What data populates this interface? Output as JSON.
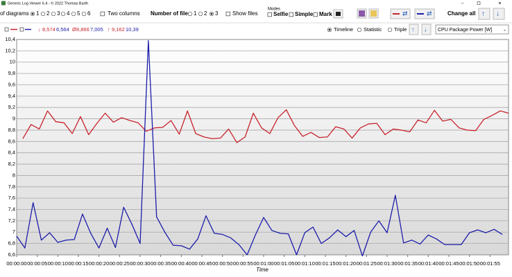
{
  "window": {
    "title": "Generic Log Viewer 6.4 - © 2022 Thomas Barth"
  },
  "toolbar": {
    "diagrams_label": "of diagrams",
    "diagram_options": [
      "1",
      "2",
      "3",
      "4",
      "5",
      "6"
    ],
    "two_columns": "Two columns",
    "files_label": "Number of files",
    "file_options": [
      "1",
      "2",
      "3"
    ],
    "show_files": "Show files",
    "modes_label": "Modes",
    "modes": [
      "Selfie",
      "Simple",
      "Mark"
    ],
    "change_all": "Change all"
  },
  "stats": [
    {
      "symbol": "↓",
      "values": [
        "8,574",
        "6,564"
      ]
    },
    {
      "symbol": "Ø",
      "values": [
        "8,866",
        "7,005"
      ]
    },
    {
      "symbol": "↑",
      "values": [
        "9,162",
        "10,39"
      ]
    }
  ],
  "view_options": [
    "Timeline",
    "Statistic",
    "Triple"
  ],
  "channel": "CPU Package Power [W]",
  "chart_data": {
    "type": "line",
    "x_label": "Time",
    "grid": true,
    "xlim": [
      0,
      119.5
    ],
    "ylim": [
      6.6,
      10.4
    ],
    "xticks": [
      {
        "value": 0,
        "label": "00:00:00"
      },
      {
        "value": 5,
        "label": "00:00:05"
      },
      {
        "value": 10,
        "label": "00:00:10"
      },
      {
        "value": 15,
        "label": "00:00:15"
      },
      {
        "value": 20,
        "label": "00:00:20"
      },
      {
        "value": 25,
        "label": "00:00:25"
      },
      {
        "value": 30,
        "label": "00:00:30"
      },
      {
        "value": 35,
        "label": "00:00:35"
      },
      {
        "value": 40,
        "label": "00:00:40"
      },
      {
        "value": 45,
        "label": "00:00:45"
      },
      {
        "value": 50,
        "label": "00:00:50"
      },
      {
        "value": 55,
        "label": "00:00:55"
      },
      {
        "value": 60,
        "label": "00:01:00"
      },
      {
        "value": 65,
        "label": "00:01:05"
      },
      {
        "value": 70,
        "label": "00:01:10"
      },
      {
        "value": 75,
        "label": "00:01:15"
      },
      {
        "value": 80,
        "label": "00:01:20"
      },
      {
        "value": 85,
        "label": "00:01:25"
      },
      {
        "value": 90,
        "label": "00:01:30"
      },
      {
        "value": 95,
        "label": "00:01:35"
      },
      {
        "value": 100,
        "label": "00:01:40"
      },
      {
        "value": 105,
        "label": "00:01:45"
      },
      {
        "value": 110,
        "label": "00:01:50"
      },
      {
        "value": 115,
        "label": "00:01:55"
      }
    ],
    "yticks": [
      {
        "value": 6.6,
        "label": "6,6"
      },
      {
        "value": 6.8,
        "label": "6,8"
      },
      7,
      {
        "value": 7.2,
        "label": "7,2"
      },
      {
        "value": 7.4,
        "label": "7,4"
      },
      {
        "value": 7.6,
        "label": "7,6"
      },
      {
        "value": 7.8,
        "label": "7,8"
      },
      8,
      {
        "value": 8.2,
        "label": "8,2"
      },
      {
        "value": 8.4,
        "label": "8,4"
      },
      {
        "value": 8.6,
        "label": "8,6"
      },
      {
        "value": 8.8,
        "label": "8,8"
      },
      9,
      {
        "value": 9.2,
        "label": "9,2"
      },
      {
        "value": 9.4,
        "label": "9,4"
      },
      {
        "value": 9.6,
        "label": "9,6"
      },
      {
        "value": 9.8,
        "label": "9,8"
      },
      10,
      {
        "value": 10.2,
        "label": "10,2"
      },
      {
        "value": 10.4,
        "label": "10,4"
      }
    ],
    "series": [
      {
        "color": "#c8232c",
        "x": [
          1.5,
          3.5,
          5.5,
          7.5,
          9.5,
          11.5,
          13.5,
          15.5,
          17.5,
          19.5,
          21.5,
          23.5,
          25.5,
          27.5,
          29.5,
          31.5,
          33.5,
          35.5,
          37.5,
          39.5,
          41.5,
          43.5,
          45.5,
          47.5,
          49.5,
          51.5,
          53.5,
          55.5,
          57.5,
          59.5,
          61.5,
          63.5,
          65.5,
          67.5,
          69.5,
          71.5,
          73.5,
          75.5,
          77.5,
          79.5,
          81.5,
          83.5,
          85.5,
          87.5,
          89.5,
          91.5,
          93.5,
          95.5,
          97.5,
          99.5,
          101.5,
          103.5,
          105.5,
          107.5,
          109.5,
          111.5,
          113.5,
          115.5,
          117.5,
          119.5
        ],
        "values": [
          8.65,
          8.9,
          8.82,
          9.14,
          8.95,
          8.93,
          8.74,
          9.04,
          8.72,
          8.92,
          9.1,
          8.94,
          9.02,
          8.97,
          8.93,
          8.78,
          8.84,
          8.85,
          8.97,
          8.73,
          9.14,
          8.74,
          8.68,
          8.65,
          8.66,
          8.82,
          8.58,
          8.68,
          9.1,
          8.84,
          8.74,
          9.02,
          9.16,
          8.88,
          8.69,
          8.76,
          8.67,
          8.68,
          8.86,
          8.82,
          8.66,
          8.84,
          8.91,
          8.92,
          8.72,
          8.82,
          8.8,
          8.77,
          8.98,
          8.93,
          9.15,
          8.96,
          8.99,
          8.84,
          8.8,
          8.79,
          8.99,
          9.06,
          9.14,
          9.1
        ]
      },
      {
        "color": "#1c1caa",
        "x": [
          0,
          2,
          4,
          6,
          8,
          10,
          12,
          14,
          16,
          18,
          20,
          22,
          24,
          26,
          28,
          30,
          32,
          34,
          36,
          38,
          40,
          42,
          44,
          46,
          48,
          50,
          52,
          54,
          56,
          58,
          60,
          62,
          64,
          66,
          68,
          70,
          72,
          74,
          76,
          78,
          80,
          82,
          84,
          86,
          88,
          90,
          92,
          94,
          96,
          98,
          100,
          102,
          104,
          106,
          108,
          110,
          112,
          114,
          116,
          118
        ],
        "values": [
          6.93,
          6.72,
          7.52,
          6.86,
          6.99,
          6.82,
          6.86,
          6.87,
          7.32,
          6.98,
          6.72,
          7.07,
          6.73,
          7.44,
          7.14,
          6.8,
          10.38,
          7.27,
          7.0,
          6.77,
          6.76,
          6.7,
          6.88,
          7.29,
          6.98,
          6.96,
          6.9,
          6.78,
          6.6,
          6.95,
          7.26,
          7.03,
          6.98,
          6.97,
          6.6,
          6.99,
          7.09,
          6.8,
          6.9,
          7.04,
          6.92,
          7.03,
          6.58,
          7.0,
          7.2,
          6.99,
          7.65,
          6.81,
          6.86,
          6.79,
          6.95,
          6.88,
          6.78,
          6.78,
          6.78,
          6.99,
          7.04,
          6.99,
          7.05,
          6.96
        ]
      }
    ]
  }
}
